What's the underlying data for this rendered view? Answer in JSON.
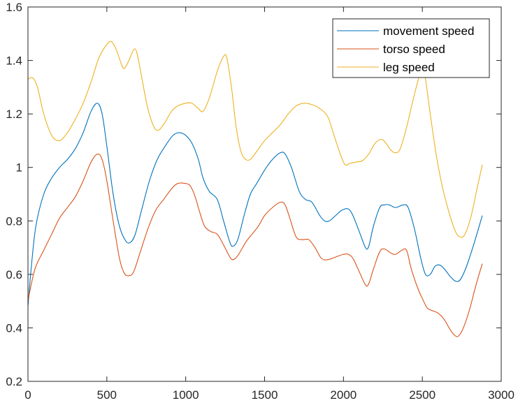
{
  "chart_data": {
    "type": "line",
    "title": "",
    "xlabel": "",
    "ylabel": "",
    "xlim": [
      0,
      3000
    ],
    "ylim": [
      0.2,
      1.6
    ],
    "xticks": [
      0,
      500,
      1000,
      1500,
      2000,
      2500,
      3000
    ],
    "yticks": [
      0.2,
      0.4,
      0.6,
      0.8,
      1.0,
      1.2,
      1.4,
      1.6
    ],
    "xtick_labels": [
      "0",
      "500",
      "1000",
      "1500",
      "2000",
      "2500",
      "3000"
    ],
    "ytick_labels": [
      "0.2",
      "0.4",
      "0.6",
      "0.8",
      "1",
      "1.2",
      "1.4",
      "1.6"
    ],
    "grid": false,
    "legend_position": "top-right",
    "series": [
      {
        "name": "movement speed",
        "color": "#0072BD",
        "points": [
          [
            0,
            0.48
          ],
          [
            20,
            0.62
          ],
          [
            50,
            0.78
          ],
          [
            100,
            0.9
          ],
          [
            150,
            0.96
          ],
          [
            200,
            1.0
          ],
          [
            250,
            1.03
          ],
          [
            300,
            1.07
          ],
          [
            350,
            1.13
          ],
          [
            400,
            1.21
          ],
          [
            440,
            1.24
          ],
          [
            470,
            1.2
          ],
          [
            500,
            1.08
          ],
          [
            540,
            0.9
          ],
          [
            580,
            0.78
          ],
          [
            620,
            0.725
          ],
          [
            650,
            0.72
          ],
          [
            680,
            0.75
          ],
          [
            720,
            0.84
          ],
          [
            770,
            0.95
          ],
          [
            820,
            1.03
          ],
          [
            870,
            1.08
          ],
          [
            920,
            1.12
          ],
          [
            960,
            1.13
          ],
          [
            1000,
            1.12
          ],
          [
            1040,
            1.09
          ],
          [
            1080,
            1.03
          ],
          [
            1110,
            0.96
          ],
          [
            1150,
            0.91
          ],
          [
            1200,
            0.88
          ],
          [
            1240,
            0.8
          ],
          [
            1280,
            0.72
          ],
          [
            1300,
            0.705
          ],
          [
            1330,
            0.73
          ],
          [
            1370,
            0.82
          ],
          [
            1410,
            0.9
          ],
          [
            1450,
            0.94
          ],
          [
            1500,
            0.99
          ],
          [
            1550,
            1.03
          ],
          [
            1600,
            1.055
          ],
          [
            1630,
            1.05
          ],
          [
            1670,
            1.0
          ],
          [
            1720,
            0.91
          ],
          [
            1760,
            0.88
          ],
          [
            1800,
            0.87
          ],
          [
            1850,
            0.82
          ],
          [
            1880,
            0.8
          ],
          [
            1910,
            0.8
          ],
          [
            1950,
            0.82
          ],
          [
            1990,
            0.84
          ],
          [
            2030,
            0.845
          ],
          [
            2060,
            0.82
          ],
          [
            2100,
            0.76
          ],
          [
            2140,
            0.7
          ],
          [
            2160,
            0.705
          ],
          [
            2190,
            0.78
          ],
          [
            2230,
            0.85
          ],
          [
            2260,
            0.86
          ],
          [
            2290,
            0.86
          ],
          [
            2330,
            0.85
          ],
          [
            2380,
            0.86
          ],
          [
            2410,
            0.85
          ],
          [
            2450,
            0.77
          ],
          [
            2490,
            0.66
          ],
          [
            2520,
            0.6
          ],
          [
            2550,
            0.6
          ],
          [
            2580,
            0.63
          ],
          [
            2610,
            0.635
          ],
          [
            2640,
            0.62
          ],
          [
            2680,
            0.59
          ],
          [
            2710,
            0.575
          ],
          [
            2740,
            0.58
          ],
          [
            2780,
            0.63
          ],
          [
            2830,
            0.72
          ],
          [
            2880,
            0.82
          ]
        ]
      },
      {
        "name": "torso speed",
        "color": "#D95319",
        "points": [
          [
            0,
            0.5
          ],
          [
            20,
            0.56
          ],
          [
            50,
            0.63
          ],
          [
            100,
            0.69
          ],
          [
            150,
            0.75
          ],
          [
            200,
            0.81
          ],
          [
            250,
            0.85
          ],
          [
            300,
            0.89
          ],
          [
            350,
            0.95
          ],
          [
            400,
            1.02
          ],
          [
            440,
            1.05
          ],
          [
            470,
            1.03
          ],
          [
            500,
            0.95
          ],
          [
            540,
            0.8
          ],
          [
            580,
            0.66
          ],
          [
            610,
            0.605
          ],
          [
            640,
            0.595
          ],
          [
            670,
            0.61
          ],
          [
            710,
            0.68
          ],
          [
            760,
            0.77
          ],
          [
            810,
            0.84
          ],
          [
            860,
            0.88
          ],
          [
            910,
            0.92
          ],
          [
            950,
            0.94
          ],
          [
            1000,
            0.94
          ],
          [
            1030,
            0.93
          ],
          [
            1060,
            0.89
          ],
          [
            1090,
            0.83
          ],
          [
            1120,
            0.78
          ],
          [
            1160,
            0.76
          ],
          [
            1200,
            0.75
          ],
          [
            1240,
            0.71
          ],
          [
            1280,
            0.665
          ],
          [
            1300,
            0.655
          ],
          [
            1330,
            0.67
          ],
          [
            1380,
            0.72
          ],
          [
            1420,
            0.75
          ],
          [
            1460,
            0.78
          ],
          [
            1500,
            0.82
          ],
          [
            1550,
            0.85
          ],
          [
            1600,
            0.87
          ],
          [
            1630,
            0.86
          ],
          [
            1660,
            0.81
          ],
          [
            1700,
            0.74
          ],
          [
            1740,
            0.73
          ],
          [
            1780,
            0.73
          ],
          [
            1820,
            0.7
          ],
          [
            1860,
            0.66
          ],
          [
            1900,
            0.655
          ],
          [
            1950,
            0.665
          ],
          [
            2000,
            0.675
          ],
          [
            2030,
            0.675
          ],
          [
            2060,
            0.66
          ],
          [
            2100,
            0.61
          ],
          [
            2140,
            0.56
          ],
          [
            2160,
            0.565
          ],
          [
            2190,
            0.62
          ],
          [
            2230,
            0.685
          ],
          [
            2260,
            0.695
          ],
          [
            2300,
            0.68
          ],
          [
            2330,
            0.675
          ],
          [
            2370,
            0.69
          ],
          [
            2400,
            0.69
          ],
          [
            2430,
            0.62
          ],
          [
            2470,
            0.55
          ],
          [
            2500,
            0.51
          ],
          [
            2530,
            0.475
          ],
          [
            2560,
            0.465
          ],
          [
            2600,
            0.455
          ],
          [
            2640,
            0.43
          ],
          [
            2680,
            0.39
          ],
          [
            2710,
            0.37
          ],
          [
            2730,
            0.37
          ],
          [
            2760,
            0.4
          ],
          [
            2800,
            0.47
          ],
          [
            2840,
            0.56
          ],
          [
            2880,
            0.64
          ]
        ]
      },
      {
        "name": "leg speed",
        "color": "#EDB120",
        "points": [
          [
            0,
            1.33
          ],
          [
            30,
            1.335
          ],
          [
            60,
            1.3
          ],
          [
            100,
            1.2
          ],
          [
            150,
            1.12
          ],
          [
            200,
            1.1
          ],
          [
            250,
            1.13
          ],
          [
            300,
            1.18
          ],
          [
            350,
            1.24
          ],
          [
            400,
            1.32
          ],
          [
            450,
            1.41
          ],
          [
            500,
            1.46
          ],
          [
            530,
            1.47
          ],
          [
            560,
            1.44
          ],
          [
            590,
            1.39
          ],
          [
            610,
            1.37
          ],
          [
            640,
            1.4
          ],
          [
            670,
            1.44
          ],
          [
            690,
            1.43
          ],
          [
            720,
            1.34
          ],
          [
            760,
            1.22
          ],
          [
            800,
            1.15
          ],
          [
            830,
            1.14
          ],
          [
            870,
            1.17
          ],
          [
            910,
            1.21
          ],
          [
            950,
            1.23
          ],
          [
            1000,
            1.24
          ],
          [
            1040,
            1.24
          ],
          [
            1080,
            1.22
          ],
          [
            1110,
            1.21
          ],
          [
            1150,
            1.26
          ],
          [
            1200,
            1.36
          ],
          [
            1240,
            1.415
          ],
          [
            1260,
            1.41
          ],
          [
            1290,
            1.3
          ],
          [
            1320,
            1.15
          ],
          [
            1350,
            1.06
          ],
          [
            1380,
            1.03
          ],
          [
            1410,
            1.03
          ],
          [
            1450,
            1.06
          ],
          [
            1500,
            1.1
          ],
          [
            1550,
            1.13
          ],
          [
            1600,
            1.16
          ],
          [
            1650,
            1.2
          ],
          [
            1700,
            1.23
          ],
          [
            1750,
            1.24
          ],
          [
            1800,
            1.235
          ],
          [
            1850,
            1.22
          ],
          [
            1900,
            1.19
          ],
          [
            1940,
            1.12
          ],
          [
            1980,
            1.05
          ],
          [
            2010,
            1.01
          ],
          [
            2040,
            1.015
          ],
          [
            2080,
            1.02
          ],
          [
            2120,
            1.025
          ],
          [
            2160,
            1.05
          ],
          [
            2200,
            1.09
          ],
          [
            2240,
            1.105
          ],
          [
            2270,
            1.09
          ],
          [
            2300,
            1.065
          ],
          [
            2330,
            1.055
          ],
          [
            2360,
            1.07
          ],
          [
            2400,
            1.15
          ],
          [
            2440,
            1.25
          ],
          [
            2480,
            1.34
          ],
          [
            2500,
            1.36
          ],
          [
            2520,
            1.33
          ],
          [
            2550,
            1.2
          ],
          [
            2590,
            1.04
          ],
          [
            2630,
            0.92
          ],
          [
            2670,
            0.83
          ],
          [
            2710,
            0.76
          ],
          [
            2740,
            0.74
          ],
          [
            2770,
            0.75
          ],
          [
            2810,
            0.82
          ],
          [
            2850,
            0.93
          ],
          [
            2880,
            1.01
          ]
        ]
      }
    ]
  }
}
